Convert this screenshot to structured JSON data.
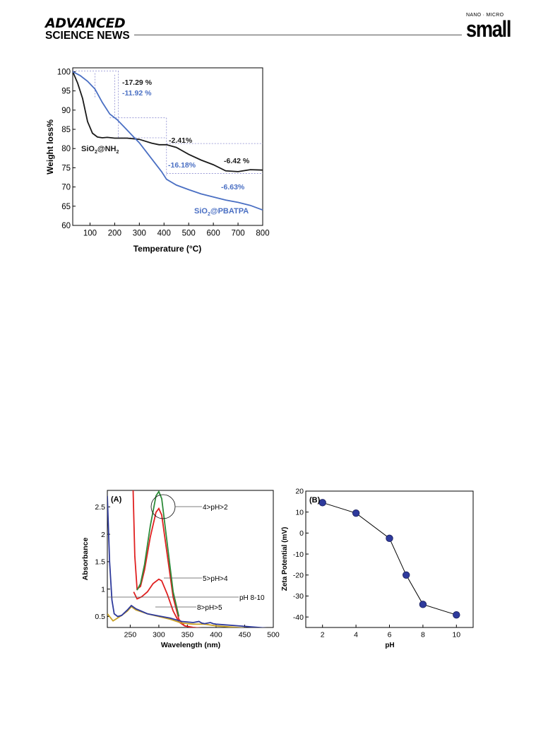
{
  "header": {
    "brand_line1": "ADVANCED",
    "brand_line2": "SCIENCE NEWS",
    "journal_tag": "NANO · MICRO",
    "journal_name": "small"
  },
  "colors": {
    "black_series": "#1a1a1a",
    "blue_series": "#4a6fc3",
    "red": "#e02020",
    "green": "#2e8b3a",
    "navy": "#2e3a9c"
  },
  "chart_data": [
    {
      "type": "line",
      "xlabel": "Temperature (°C)",
      "ylabel": "Weight loss%",
      "xlim": [
        30,
        800
      ],
      "ylim": [
        60,
        101
      ],
      "xticks": [
        100,
        200,
        300,
        400,
        500,
        600,
        700,
        800
      ],
      "yticks": [
        60,
        65,
        70,
        75,
        80,
        85,
        90,
        95,
        100
      ],
      "series": [
        {
          "name": "SiO2@NH2",
          "color": "#1a1a1a",
          "x": [
            30,
            50,
            70,
            90,
            110,
            130,
            150,
            170,
            200,
            250,
            300,
            350,
            380,
            410,
            450,
            500,
            550,
            600,
            650,
            700,
            750,
            800
          ],
          "y": [
            100,
            97,
            93,
            87,
            84,
            83,
            82.8,
            82.9,
            82.7,
            82.7,
            82.4,
            81.4,
            81,
            81,
            80.3,
            78.5,
            77,
            75.8,
            74.2,
            74,
            74.5,
            74.4
          ]
        },
        {
          "name": "SiO2@PBATPA",
          "color": "#4a6fc3",
          "x": [
            30,
            60,
            90,
            120,
            150,
            180,
            210,
            240,
            270,
            300,
            330,
            360,
            390,
            410,
            450,
            500,
            550,
            600,
            650,
            700,
            750,
            800
          ],
          "y": [
            100,
            99,
            97.5,
            95.5,
            92,
            89,
            87.5,
            85.5,
            83.5,
            81.5,
            79,
            76.5,
            74,
            72,
            70.5,
            69.3,
            68.2,
            67.4,
            66.6,
            66,
            65.2,
            64
          ]
        }
      ],
      "annotations": [
        "-17.29 %",
        "-11.92 %",
        "-2.41%",
        "-16.18%",
        "-6.42 %",
        "-6.63%"
      ],
      "series_labels": [
        "SiO",
        "2",
        "@NH",
        "2",
        "SiO",
        "2",
        "@PBATPA"
      ]
    },
    {
      "type": "line",
      "panel_label": "(A)",
      "xlabel": "Wavelength (nm)",
      "ylabel": "Absorbance",
      "xlim": [
        210,
        500
      ],
      "ylim": [
        0.3,
        2.8
      ],
      "xticks": [
        250,
        300,
        350,
        400,
        450,
        500
      ],
      "yticks": [
        0.5,
        1.0,
        1.5,
        2.0,
        2.5
      ],
      "series": [
        {
          "color": "#e02020",
          "x": [
            255,
            258,
            262,
            268,
            275,
            285,
            295,
            300,
            305,
            315,
            325,
            335,
            345,
            360,
            380,
            400,
            430,
            460,
            500
          ],
          "y": [
            2.8,
            1.6,
            1.0,
            1.05,
            1.35,
            1.95,
            2.4,
            2.47,
            2.35,
            1.6,
            0.85,
            0.45,
            0.33,
            0.3,
            0.28,
            0.27,
            0.26,
            0.25,
            0.23
          ]
        },
        {
          "color": "#2e8b3a",
          "x": [
            262,
            268,
            275,
            285,
            295,
            300,
            305,
            315,
            325,
            335
          ],
          "y": [
            0.98,
            1.1,
            1.45,
            2.15,
            2.7,
            2.78,
            2.65,
            1.8,
            0.95,
            0.5
          ]
        },
        {
          "color": "#e02020",
          "x": [
            256,
            262,
            270,
            280,
            290,
            300,
            305,
            315,
            325,
            335,
            345,
            360,
            400,
            500
          ],
          "y": [
            0.95,
            0.82,
            0.86,
            0.95,
            1.1,
            1.18,
            1.15,
            0.9,
            0.6,
            0.4,
            0.33,
            0.3,
            0.27,
            0.23
          ]
        },
        {
          "color": "#c9a227",
          "x": [
            210,
            220,
            235,
            245,
            252,
            260,
            280,
            300,
            320,
            340,
            360,
            380,
            400,
            450,
            500
          ],
          "y": [
            0.55,
            0.42,
            0.52,
            0.6,
            0.68,
            0.62,
            0.55,
            0.5,
            0.45,
            0.38,
            0.36,
            0.36,
            0.33,
            0.29,
            0.26
          ]
        },
        {
          "color": "#2e3a9c",
          "x": [
            210,
            214,
            218,
            222,
            228,
            235,
            245,
            252,
            260,
            280,
            300,
            320,
            340,
            360,
            370,
            375,
            380,
            390,
            395,
            400,
            450,
            500
          ],
          "y": [
            2.7,
            1.5,
            0.8,
            0.55,
            0.5,
            0.52,
            0.62,
            0.7,
            0.64,
            0.55,
            0.51,
            0.47,
            0.41,
            0.39,
            0.41,
            0.38,
            0.37,
            0.39,
            0.37,
            0.36,
            0.32,
            0.28
          ]
        }
      ],
      "annotations": [
        "4>pH>2",
        "5>pH>4",
        "pH 8-10",
        "8>pH>5"
      ]
    },
    {
      "type": "scatter",
      "panel_label": "(B)",
      "xlabel": "pH",
      "ylabel": "Zeta Potential (mV)",
      "xlim": [
        1,
        11
      ],
      "ylim": [
        -45,
        20
      ],
      "xticks": [
        2,
        4,
        6,
        8,
        10
      ],
      "yticks": [
        -40,
        -30,
        -20,
        -10,
        0,
        10,
        20
      ],
      "series": [
        {
          "color": "#2e3a9c",
          "x": [
            2,
            4,
            6,
            7,
            8,
            10
          ],
          "y": [
            14.5,
            9.5,
            -2.5,
            -20,
            -34,
            -39
          ]
        }
      ]
    }
  ]
}
